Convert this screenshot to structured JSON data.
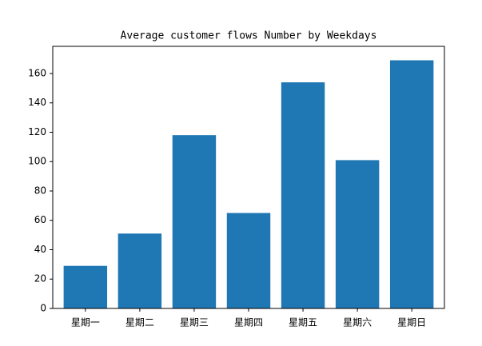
{
  "chart_data": {
    "type": "bar",
    "title": "Average customer flows Number by Weekdays",
    "categories": [
      "星期一",
      "星期二",
      "星期三",
      "星期四",
      "星期五",
      "星期六",
      "星期日"
    ],
    "values": [
      29,
      51,
      118,
      65,
      154,
      101,
      169
    ],
    "color": "#1f77b4",
    "ylim": [
      0,
      178.5
    ],
    "yticks": [
      0,
      20,
      40,
      60,
      80,
      100,
      120,
      140,
      160
    ],
    "grid": false
  }
}
